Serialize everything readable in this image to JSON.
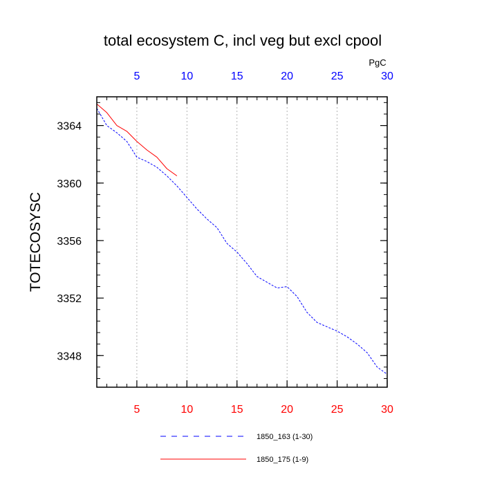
{
  "chart_data": {
    "type": "line",
    "title": "total ecosystem C, incl veg but excl cpool",
    "ylabel": "TOTECOSYSC",
    "xlabel": "",
    "top_axis_units": "PgC",
    "xlim": [
      1,
      30
    ],
    "ylim": [
      3345.8,
      3366.0
    ],
    "x_ticks": [
      5,
      10,
      15,
      20,
      25,
      30
    ],
    "y_ticks": [
      3348,
      3352,
      3356,
      3360,
      3364
    ],
    "x_minor_step": 1,
    "y_minor_step": 0.8,
    "x_grid": true,
    "y_grid": false,
    "top_tick_color": "#0000ff",
    "bottom_tick_color": "#ff0000",
    "legend_position": "bottom",
    "series": [
      {
        "name": "1850_163 (1-30)",
        "color": "#0000ff",
        "dash": "dashed",
        "x": [
          1,
          2,
          3,
          4,
          5,
          6,
          7,
          8,
          9,
          10,
          11,
          12,
          13,
          14,
          15,
          16,
          17,
          18,
          19,
          20,
          21,
          22,
          23,
          24,
          25,
          26,
          27,
          28,
          29,
          30
        ],
        "y": [
          3365.2,
          3364.0,
          3363.5,
          3362.9,
          3361.8,
          3361.5,
          3361.1,
          3360.5,
          3359.8,
          3359.0,
          3358.2,
          3357.5,
          3356.9,
          3355.8,
          3355.2,
          3354.4,
          3353.5,
          3353.1,
          3352.7,
          3352.8,
          3352.1,
          3351.0,
          3350.3,
          3350.0,
          3349.7,
          3349.3,
          3348.8,
          3348.2,
          3347.2,
          3346.7
        ]
      },
      {
        "name": "1850_175 (1-9)",
        "color": "#ff0000",
        "dash": "solid",
        "x": [
          1,
          2,
          3,
          4,
          5,
          6,
          7,
          8,
          9
        ],
        "y": [
          3365.5,
          3364.9,
          3364.0,
          3363.6,
          3362.9,
          3362.3,
          3361.8,
          3361.0,
          3360.5
        ]
      }
    ]
  }
}
